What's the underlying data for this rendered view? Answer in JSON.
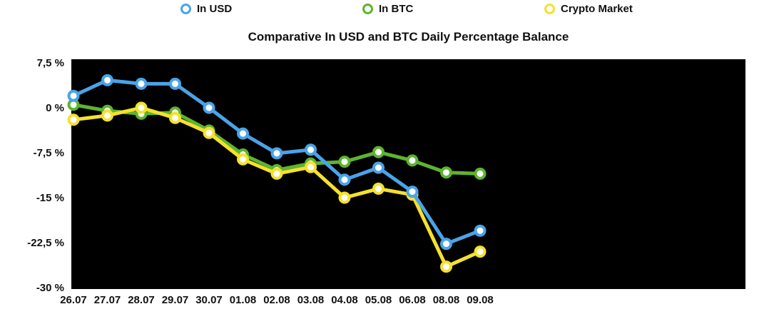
{
  "chart_data": {
    "type": "line",
    "title": "Comparative In USD and BTC Daily Percentage Balance",
    "categories": [
      "26.07",
      "27.07",
      "28.07",
      "29.07",
      "30.07",
      "01.08",
      "02.08",
      "03.08",
      "04.08",
      "05.08",
      "06.08",
      "08.08",
      "09.08"
    ],
    "ylim": [
      -30,
      7.5
    ],
    "y_ticks": [
      7.5,
      0,
      -7.5,
      -15,
      -22.5,
      -30
    ],
    "y_tick_labels": [
      "7,5 %",
      "0 %",
      "-7,5 %",
      "-15 %",
      "-22,5 %",
      "-30 %"
    ],
    "grid": false,
    "legend_position": "top",
    "plot_background": "#000000",
    "draw_order": [
      1,
      2,
      0
    ],
    "series": [
      {
        "name": "In USD",
        "color": "#4aa3e8",
        "values": [
          2,
          4.6,
          4,
          4,
          0,
          -4.3,
          -7.6,
          -7,
          -12,
          -10,
          -14,
          -22.7,
          -20.5
        ]
      },
      {
        "name": "In BTC",
        "color": "#5db430",
        "values": [
          0.5,
          -0.5,
          -1,
          -0.8,
          -3.8,
          -7.8,
          -10.4,
          -9.3,
          -9,
          -7.4,
          -8.8,
          -10.8,
          -11
        ]
      },
      {
        "name": "Crypto Market",
        "color": "#f5e12c",
        "values": [
          -2,
          -1.3,
          0,
          -1.7,
          -4.2,
          -8.6,
          -11,
          -9.9,
          -15,
          -13.5,
          -14.5,
          -26.5,
          -24
        ]
      }
    ]
  }
}
